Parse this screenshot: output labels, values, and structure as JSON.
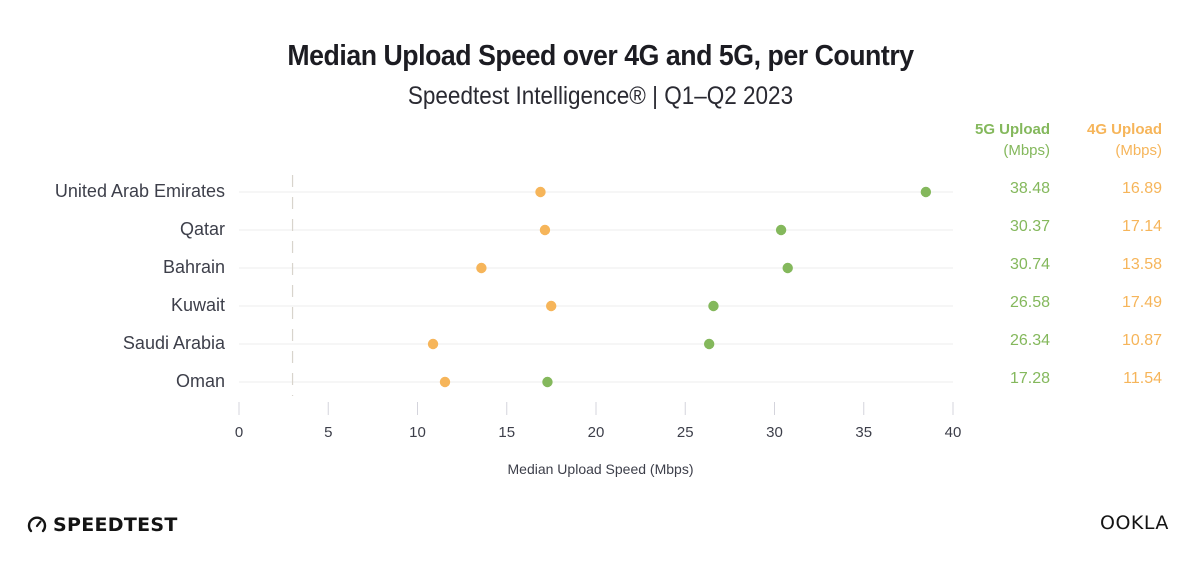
{
  "header": {
    "title": "Median Upload Speed over 4G and 5G, per Country",
    "subtitle": "Speedtest Intelligence® | Q1–Q2 2023"
  },
  "table": {
    "col_5g_title": "5G Upload",
    "col_5g_unit": "(Mbps)",
    "col_4g_title": "4G Upload",
    "col_4g_unit": "(Mbps)"
  },
  "colors": {
    "series_5g": "#84b85c",
    "series_4g": "#f6b55a",
    "gridline": "#eeeeee",
    "reference_line": "#d8d4cc"
  },
  "footer": {
    "left_logo": "SPEEDTEST",
    "left_logo_icon": "speedometer-icon",
    "right_logo": "OOKLA"
  },
  "chart_data": {
    "type": "scatter",
    "subtype": "dot-plot",
    "title": "Median Upload Speed over 4G and 5G, per Country",
    "subtitle": "Speedtest Intelligence® | Q1–Q2 2023",
    "xlabel": "Median Upload Speed (Mbps)",
    "ylabel": "",
    "xlim": [
      0,
      40
    ],
    "xticks": [
      0,
      5,
      10,
      15,
      20,
      25,
      30,
      35,
      40
    ],
    "xtick_labels": [
      "0",
      "5",
      "10",
      "15",
      "20",
      "25",
      "30",
      "35",
      "40"
    ],
    "reference_line_x": 3,
    "grid": "horizontal",
    "categories": [
      "United Arab Emirates",
      "Qatar",
      "Bahrain",
      "Kuwait",
      "Saudi Arabia",
      "Oman"
    ],
    "series": [
      {
        "name": "5G Upload (Mbps)",
        "color": "#84b85c",
        "values": [
          38.48,
          30.37,
          30.74,
          26.58,
          26.34,
          17.28
        ],
        "labels": [
          "38.48",
          "30.37",
          "30.74",
          "26.58",
          "26.34",
          "17.28"
        ]
      },
      {
        "name": "4G Upload (Mbps)",
        "color": "#f6b55a",
        "values": [
          16.89,
          17.14,
          13.58,
          17.49,
          10.87,
          11.54
        ],
        "labels": [
          "16.89",
          "17.14",
          "13.58",
          "17.49",
          "10.87",
          "11.54"
        ]
      }
    ]
  }
}
